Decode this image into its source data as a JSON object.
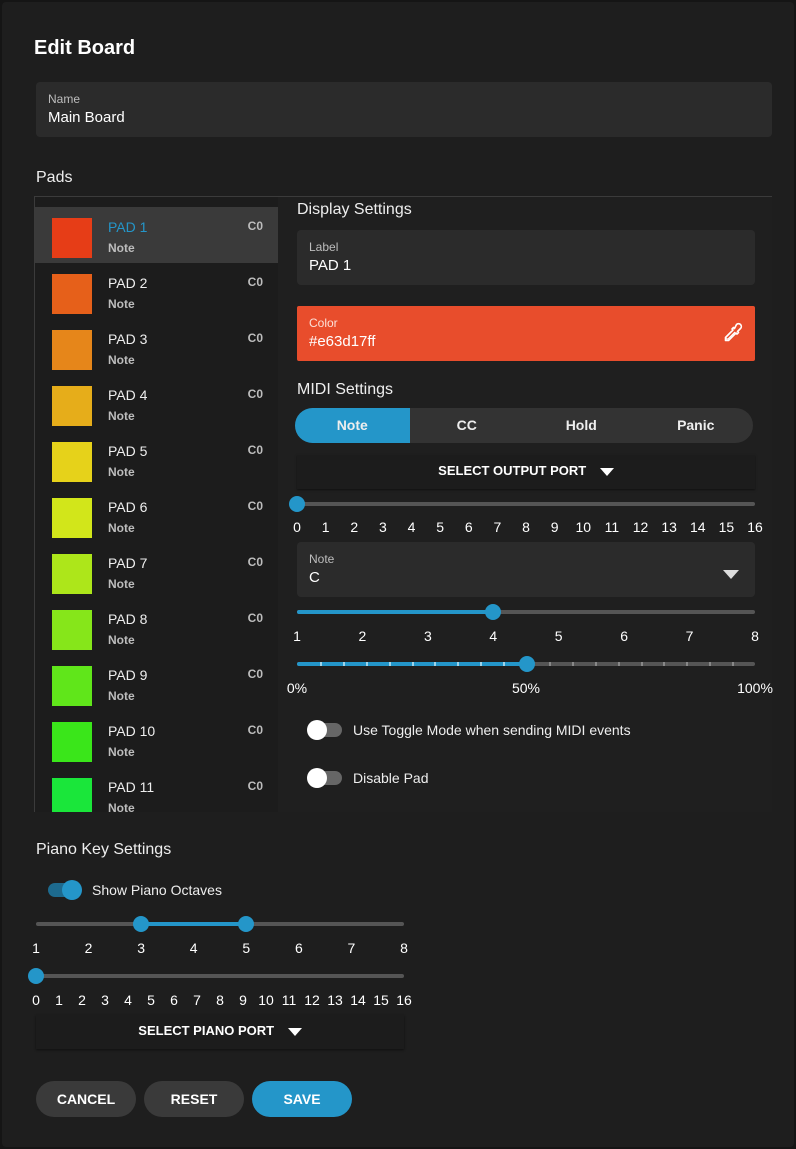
{
  "dialog": {
    "title": "Edit Board",
    "name_field": {
      "label": "Name",
      "value": "Main Board"
    },
    "pads_label": "Pads"
  },
  "pads": [
    {
      "name": "PAD 1",
      "type": "Note",
      "note": "C0",
      "color": "#e63d17"
    },
    {
      "name": "PAD 2",
      "type": "Note",
      "note": "C0",
      "color": "#e6601a"
    },
    {
      "name": "PAD 3",
      "type": "Note",
      "note": "C0",
      "color": "#e6861a"
    },
    {
      "name": "PAD 4",
      "type": "Note",
      "note": "C0",
      "color": "#e6ad1a"
    },
    {
      "name": "PAD 5",
      "type": "Note",
      "note": "C0",
      "color": "#e6d21a"
    },
    {
      "name": "PAD 6",
      "type": "Note",
      "note": "C0",
      "color": "#d2e61a"
    },
    {
      "name": "PAD 7",
      "type": "Note",
      "note": "C0",
      "color": "#ade61a"
    },
    {
      "name": "PAD 8",
      "type": "Note",
      "note": "C0",
      "color": "#86e61a"
    },
    {
      "name": "PAD 9",
      "type": "Note",
      "note": "C0",
      "color": "#60e61a"
    },
    {
      "name": "PAD 10",
      "type": "Note",
      "note": "C0",
      "color": "#3ae61a"
    },
    {
      "name": "PAD 11",
      "type": "Note",
      "note": "C0",
      "color": "#1ae63a"
    }
  ],
  "display_settings": {
    "heading": "Display Settings",
    "label_field": {
      "label": "Label",
      "value": "PAD 1"
    },
    "color_field": {
      "label": "Color",
      "value": "#e63d17ff",
      "swatch": "#e84d2c"
    }
  },
  "midi_settings": {
    "heading": "MIDI Settings",
    "modes": [
      "Note",
      "CC",
      "Hold",
      "Panic"
    ],
    "active_mode": "Note",
    "output_port_button": "SELECT OUTPUT PORT",
    "channel_slider": {
      "value": 0,
      "ticks": [
        "0",
        "1",
        "2",
        "3",
        "4",
        "5",
        "6",
        "7",
        "8",
        "9",
        "10",
        "11",
        "12",
        "13",
        "14",
        "15",
        "16"
      ]
    },
    "note_field": {
      "label": "Note",
      "value": "C"
    },
    "octave_slider": {
      "value": 4,
      "ticks": [
        "1",
        "2",
        "3",
        "4",
        "5",
        "6",
        "7",
        "8"
      ]
    },
    "velocity_slider": {
      "value": 0.5,
      "ticks": [
        "0%",
        "50%",
        "100%"
      ]
    },
    "toggle_mode": {
      "label": "Use Toggle Mode when sending MIDI events",
      "checked": false
    },
    "disable_pad": {
      "label": "Disable Pad",
      "checked": false
    }
  },
  "piano": {
    "heading": "Piano Key Settings",
    "show_octaves": {
      "label": "Show Piano Octaves",
      "checked": true
    },
    "octave_range": {
      "low": 3,
      "high": 5,
      "ticks": [
        "1",
        "2",
        "3",
        "4",
        "5",
        "6",
        "7",
        "8"
      ]
    },
    "channel_slider": {
      "value": 0,
      "ticks": [
        "0",
        "1",
        "2",
        "3",
        "4",
        "5",
        "6",
        "7",
        "8",
        "9",
        "10",
        "11",
        "12",
        "13",
        "14",
        "15",
        "16"
      ]
    },
    "port_button": "SELECT PIANO PORT"
  },
  "actions": {
    "cancel": "CANCEL",
    "reset": "RESET",
    "save": "SAVE"
  },
  "colors": {
    "accent": "#2496c9",
    "background": "#1e1e1e",
    "field": "#2b2b2b"
  }
}
